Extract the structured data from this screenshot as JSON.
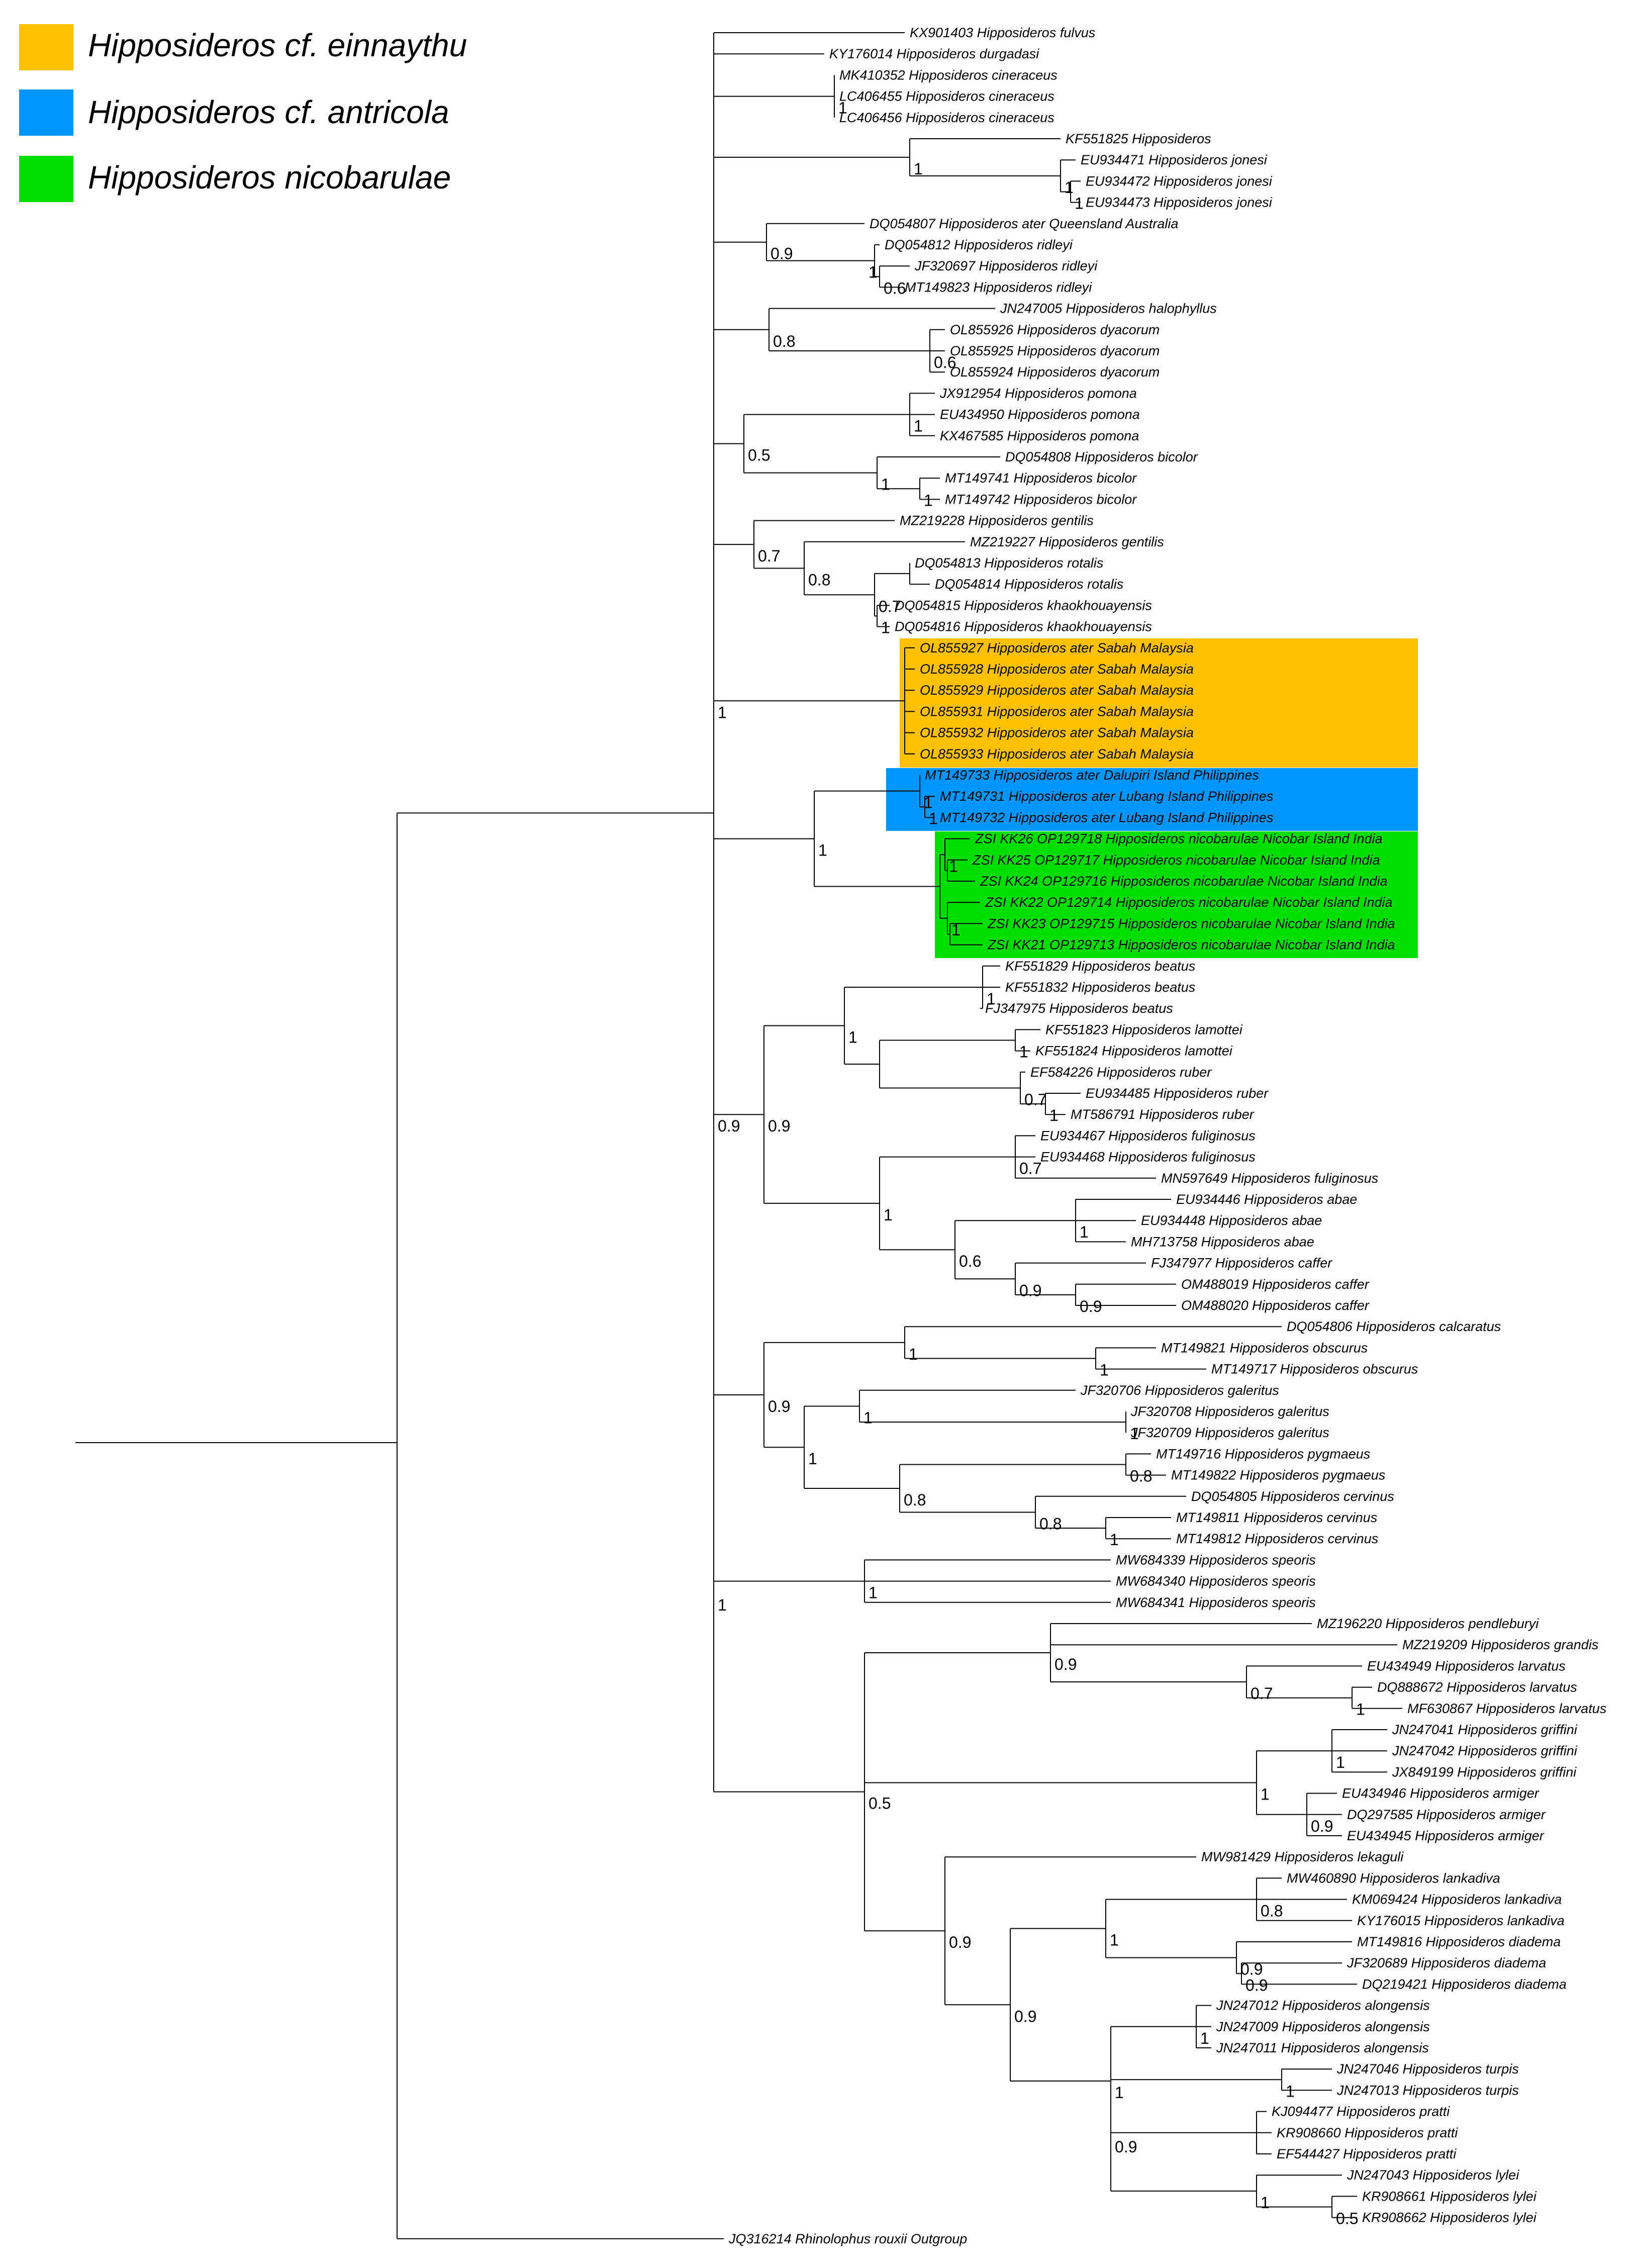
{
  "legend": [
    {
      "label": "Hipposideros cf. einnaythu",
      "color": "#FFC000"
    },
    {
      "label": "Hipposideros  cf. antricola",
      "color": "#0096FF"
    },
    {
      "label": "Hipposideros nicobarulae",
      "color": "#00DE00"
    }
  ],
  "highlight_colors": {
    "einnaythu": "#FFC000",
    "antricola": "#0096FF",
    "nicobarulae": "#00DE00"
  },
  "tree": {
    "leaves": [
      "KX901403 Hipposideros fulvus",
      "KY176014 Hipposideros durgadasi",
      "MK410352 Hipposideros cineraceus",
      "LC406455 Hipposideros cineraceus",
      "LC406456 Hipposideros cineraceus",
      "KF551825 Hipposideros",
      "EU934471 Hipposideros jonesi",
      "EU934472 Hipposideros jonesi",
      "EU934473 Hipposideros jonesi",
      "DQ054807 Hipposideros ater Queensland Australia",
      "DQ054812 Hipposideros ridleyi",
      "JF320697 Hipposideros ridleyi",
      "MT149823 Hipposideros ridleyi",
      "JN247005 Hipposideros halophyllus",
      "OL855926 Hipposideros dyacorum",
      "OL855925 Hipposideros dyacorum",
      "OL855924 Hipposideros dyacorum",
      "JX912954 Hipposideros pomona",
      "EU434950 Hipposideros pomona",
      "KX467585 Hipposideros pomona",
      "DQ054808 Hipposideros bicolor",
      "MT149741 Hipposideros bicolor",
      "MT149742 Hipposideros bicolor",
      "MZ219228 Hipposideros gentilis",
      "MZ219227 Hipposideros gentilis",
      "DQ054813 Hipposideros rotalis",
      "DQ054814 Hipposideros rotalis",
      "DQ054815 Hipposideros khaokhouayensis",
      "DQ054816 Hipposideros khaokhouayensis",
      "OL855927 Hipposideros ater Sabah Malaysia",
      "OL855928 Hipposideros ater Sabah Malaysia",
      "OL855929 Hipposideros ater Sabah Malaysia",
      "OL855931 Hipposideros ater Sabah Malaysia",
      "OL855932 Hipposideros ater Sabah Malaysia",
      "OL855933 Hipposideros ater Sabah Malaysia",
      "MT149733 Hipposideros ater Dalupiri Island Philippines",
      "MT149731 Hipposideros ater Lubang Island Philippines",
      "MT149732 Hipposideros ater Lubang Island Philippines",
      "ZSI KK26 OP129718 Hipposideros nicobarulae Nicobar Island India",
      "ZSI KK25 OP129717 Hipposideros nicobarulae Nicobar Island India",
      "ZSI KK24 OP129716 Hipposideros nicobarulae Nicobar Island India",
      "ZSI KK22 OP129714 Hipposideros nicobarulae Nicobar Island India",
      "ZSI KK23 OP129715 Hipposideros nicobarulae Nicobar Island India",
      "ZSI KK21 OP129713 Hipposideros nicobarulae Nicobar Island India",
      "KF551829 Hipposideros beatus",
      "KF551832 Hipposideros beatus",
      "FJ347975 Hipposideros beatus",
      "KF551823 Hipposideros lamottei",
      "KF551824 Hipposideros lamottei",
      "EF584226 Hipposideros ruber",
      "EU934485 Hipposideros ruber",
      "MT586791 Hipposideros ruber",
      "EU934467 Hipposideros fuliginosus",
      "EU934468 Hipposideros fuliginosus",
      "MN597649 Hipposideros fuliginosus",
      "EU934446 Hipposideros abae",
      "EU934448 Hipposideros abae",
      "MH713758 Hipposideros abae",
      "FJ347977 Hipposideros caffer",
      "OM488019 Hipposideros caffer",
      "OM488020 Hipposideros caffer",
      "DQ054806 Hipposideros calcaratus",
      "MT149821 Hipposideros obscurus",
      "MT149717 Hipposideros obscurus",
      "JF320706 Hipposideros galeritus",
      "JF320708 Hipposideros galeritus",
      "JF320709 Hipposideros galeritus",
      "MT149716 Hipposideros pygmaeus",
      "MT149822 Hipposideros pygmaeus",
      "DQ054805 Hipposideros cervinus",
      "MT149811 Hipposideros cervinus",
      "MT149812 Hipposideros cervinus",
      "MW684339 Hipposideros speoris",
      "MW684340 Hipposideros speoris",
      "MW684341 Hipposideros speoris",
      "MZ196220 Hipposideros pendleburyi",
      "MZ219209 Hipposideros grandis",
      "EU434949 Hipposideros larvatus",
      "DQ888672 Hipposideros larvatus",
      "MF630867 Hipposideros larvatus",
      "JN247041 Hipposideros griffini",
      "JN247042 Hipposideros griffini",
      "JX849199 Hipposideros griffini",
      "EU434946 Hipposideros armiger",
      "DQ297585 Hipposideros armiger",
      "EU434945 Hipposideros armiger",
      "MW981429 Hipposideros lekaguli",
      "MW460890 Hipposideros lankadiva",
      "KM069424 Hipposideros lankadiva",
      "KY176015 Hipposideros lankadiva",
      "MT149816 Hipposideros diadema",
      "JF320689 Hipposideros diadema",
      "DQ219421 Hipposideros diadema",
      "JN247012 Hipposideros alongensis",
      "JN247009 Hipposideros alongensis",
      "JN247011 Hipposideros alongensis",
      "JN247046 Hipposideros turpis",
      "JN247013 Hipposideros turpis",
      "KJ094477 Hipposideros pratti",
      "KR908660 Hipposideros pratti",
      "EF544427 Hipposideros pratti",
      "JN247043 Hipposideros lylei",
      "KR908661 Hipposideros lylei",
      "KR908662 Hipposideros lylei",
      "JQ316214 Rhinolophus rouxii Outgroup"
    ],
    "support_values": [
      "1",
      "1",
      "1",
      "0.9",
      "1",
      "0.6",
      "0.8",
      "1",
      "0.6",
      "1",
      "0.5",
      "1",
      "1",
      "0.7",
      "0.8",
      "0.7",
      "1",
      "1",
      "1",
      "1",
      "1",
      "1",
      "1",
      "1",
      "1",
      "1",
      "1",
      "0.7",
      "0.9",
      "1",
      "0.7",
      "1",
      "0.6",
      "0.9",
      "1",
      "0.9",
      "1",
      "1",
      "1",
      "1",
      "0.8",
      "1",
      "0.8",
      "1",
      "1",
      "0.9",
      "1",
      "0.7",
      "1",
      "0.9",
      "1",
      "0.5",
      "0.9",
      "1",
      "0.8",
      "0.9",
      "0.9",
      "1",
      "0.9",
      "1",
      "0.6",
      "1",
      "0.5",
      "1",
      "1",
      "0.9",
      "1",
      "1",
      "1"
    ]
  }
}
